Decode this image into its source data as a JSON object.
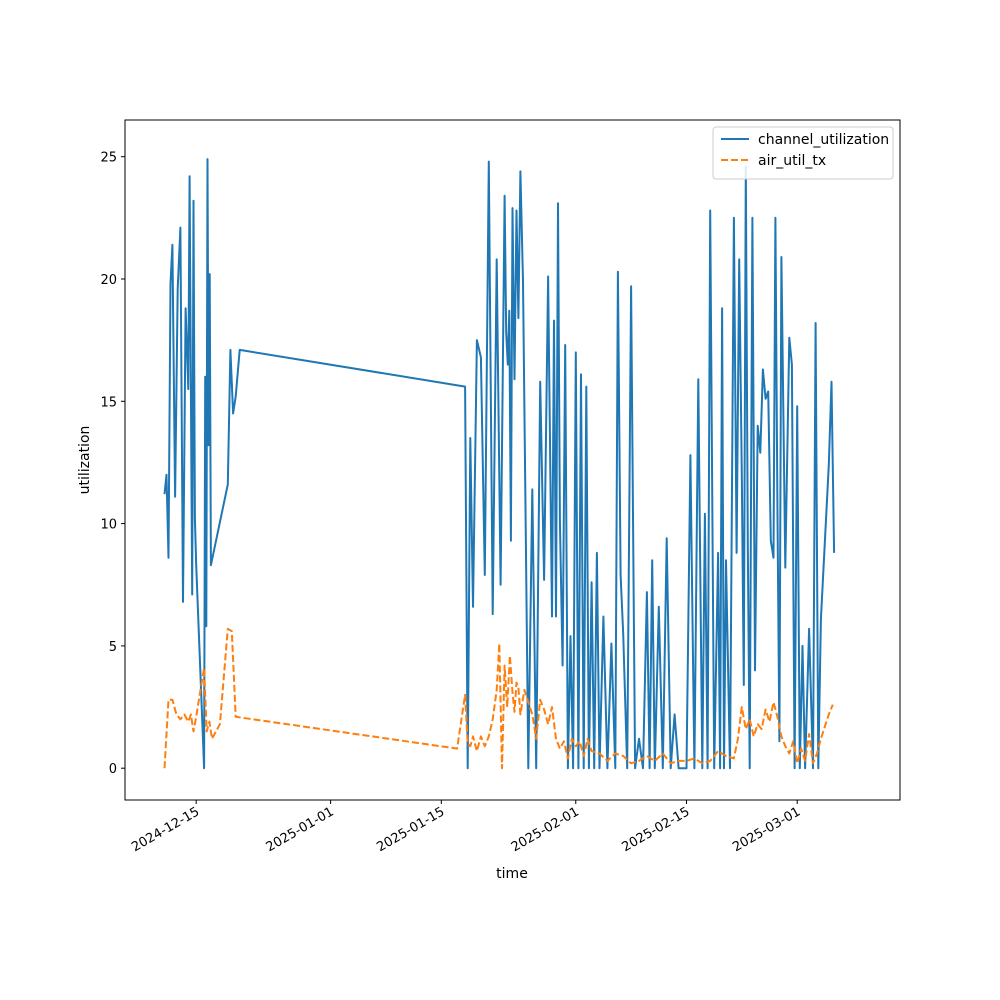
{
  "chart_data": {
    "type": "line",
    "title": "",
    "xlabel": "time",
    "ylabel": "utilization",
    "x_tick_labels": [
      "2024-12-15",
      "2025-01-01",
      "2025-01-15",
      "2025-02-01",
      "2025-02-15",
      "2025-03-01"
    ],
    "x_tick_dates": [
      "2024-12-15",
      "2025-01-01",
      "2025-01-15",
      "2025-02-01",
      "2025-02-15",
      "2025-03-01"
    ],
    "y_ticks": [
      0,
      5,
      10,
      15,
      20,
      25
    ],
    "xlim": [
      "2024-12-06",
      "2025-03-14"
    ],
    "ylim": [
      -1.3,
      26.5
    ],
    "grid": false,
    "legend_position": "top-right",
    "colors": {
      "channel_utilization": "#1f77b4",
      "air_util_tx": "#ff7f0e"
    },
    "series": [
      {
        "name": "channel_utilization",
        "style": "solid",
        "points": [
          [
            "2024-12-11",
            11.2
          ],
          [
            "2024-12-11",
            12.0
          ],
          [
            "2024-12-11",
            8.6
          ],
          [
            "2024-12-11",
            19.8
          ],
          [
            "2024-12-12",
            21.4
          ],
          [
            "2024-12-12",
            11.1
          ],
          [
            "2024-12-12",
            19.6
          ],
          [
            "2024-12-13",
            22.1
          ],
          [
            "2024-12-13",
            6.8
          ],
          [
            "2024-12-13",
            18.8
          ],
          [
            "2024-12-14",
            15.5
          ],
          [
            "2024-12-14",
            24.2
          ],
          [
            "2024-12-14",
            15.5
          ],
          [
            "2024-12-14",
            7.1
          ],
          [
            "2024-12-14",
            23.2
          ],
          [
            "2024-12-14",
            10.2
          ],
          [
            "2024-12-15",
            8.3
          ],
          [
            "2024-12-16",
            0.0
          ],
          [
            "2024-12-16",
            16.0
          ],
          [
            "2024-12-16",
            5.8
          ],
          [
            "2024-12-16",
            24.9
          ],
          [
            "2024-12-16",
            13.2
          ],
          [
            "2024-12-16",
            20.2
          ],
          [
            "2024-12-16",
            8.3
          ],
          [
            "2024-12-19",
            11.6
          ],
          [
            "2024-12-19",
            17.1
          ],
          [
            "2024-12-19",
            14.5
          ],
          [
            "2024-12-20",
            15.2
          ],
          [
            "2024-12-20",
            17.1
          ],
          [
            "2025-01-18",
            15.6
          ],
          [
            "2025-01-18",
            0.0
          ],
          [
            "2025-01-18",
            13.5
          ],
          [
            "2025-01-19",
            6.6
          ],
          [
            "2025-01-19",
            17.5
          ],
          [
            "2025-01-20",
            16.8
          ],
          [
            "2025-01-20",
            7.9
          ],
          [
            "2025-01-21",
            24.8
          ],
          [
            "2025-01-21",
            6.3
          ],
          [
            "2025-01-22",
            20.8
          ],
          [
            "2025-01-22",
            7.5
          ],
          [
            "2025-01-23",
            23.4
          ],
          [
            "2025-01-23",
            17.8
          ],
          [
            "2025-01-23",
            16.5
          ],
          [
            "2025-01-23",
            18.7
          ],
          [
            "2025-01-23",
            9.3
          ],
          [
            "2025-01-24",
            22.9
          ],
          [
            "2025-01-24",
            15.9
          ],
          [
            "2025-01-24",
            22.8
          ],
          [
            "2025-01-24",
            18.4
          ],
          [
            "2025-01-25",
            24.4
          ],
          [
            "2025-01-25",
            19.9
          ],
          [
            "2025-01-25",
            9.9
          ],
          [
            "2025-01-26",
            0.0
          ],
          [
            "2025-01-26",
            11.4
          ],
          [
            "2025-01-27",
            0.0
          ],
          [
            "2025-01-27",
            15.8
          ],
          [
            "2025-01-28",
            7.7
          ],
          [
            "2025-01-28",
            20.1
          ],
          [
            "2025-01-29",
            6.2
          ],
          [
            "2025-01-29",
            18.3
          ],
          [
            "2025-01-29",
            6.2
          ],
          [
            "2025-01-29",
            23.1
          ],
          [
            "2025-01-30",
            10.1
          ],
          [
            "2025-01-30",
            4.2
          ],
          [
            "2025-01-30",
            17.3
          ],
          [
            "2025-01-31",
            0.0
          ],
          [
            "2025-01-31",
            5.4
          ],
          [
            "2025-01-31",
            0.0
          ],
          [
            "2025-02-01",
            17.0
          ],
          [
            "2025-02-01",
            0.0
          ],
          [
            "2025-02-01",
            16.1
          ],
          [
            "2025-02-02",
            0.0
          ],
          [
            "2025-02-02",
            15.6
          ],
          [
            "2025-02-02",
            0.0
          ],
          [
            "2025-02-03",
            7.6
          ],
          [
            "2025-02-03",
            0.0
          ],
          [
            "2025-02-03",
            8.8
          ],
          [
            "2025-02-04",
            0.0
          ],
          [
            "2025-02-04",
            6.2
          ],
          [
            "2025-02-05",
            0.0
          ],
          [
            "2025-02-05",
            5.1
          ],
          [
            "2025-02-06",
            0.0
          ],
          [
            "2025-02-06",
            20.3
          ],
          [
            "2025-02-06",
            7.9
          ],
          [
            "2025-02-07",
            5.5
          ],
          [
            "2025-02-07",
            0.0
          ],
          [
            "2025-02-08",
            19.7
          ],
          [
            "2025-02-08",
            0.0
          ],
          [
            "2025-02-09",
            1.2
          ],
          [
            "2025-02-09",
            0.0
          ],
          [
            "2025-02-10",
            7.2
          ],
          [
            "2025-02-10",
            0.0
          ],
          [
            "2025-02-10",
            8.5
          ],
          [
            "2025-02-11",
            0.0
          ],
          [
            "2025-02-11",
            6.6
          ],
          [
            "2025-02-12",
            0.0
          ],
          [
            "2025-02-12",
            9.4
          ],
          [
            "2025-02-13",
            0.0
          ],
          [
            "2025-02-13",
            2.2
          ],
          [
            "2025-02-14",
            0.0
          ],
          [
            "2025-02-15",
            0.0
          ],
          [
            "2025-02-15",
            12.8
          ],
          [
            "2025-02-16",
            0.0
          ],
          [
            "2025-02-16",
            15.9
          ],
          [
            "2025-02-17",
            0.0
          ],
          [
            "2025-02-17",
            10.4
          ],
          [
            "2025-02-17",
            0.0
          ],
          [
            "2025-02-18",
            22.8
          ],
          [
            "2025-02-18",
            0.0
          ],
          [
            "2025-02-19",
            8.8
          ],
          [
            "2025-02-19",
            0.0
          ],
          [
            "2025-02-19",
            18.8
          ],
          [
            "2025-02-19",
            0.0
          ],
          [
            "2025-02-20",
            8.5
          ],
          [
            "2025-02-20",
            0.0
          ],
          [
            "2025-02-21",
            22.5
          ],
          [
            "2025-02-21",
            8.8
          ],
          [
            "2025-02-21",
            20.8
          ],
          [
            "2025-02-22",
            12.0
          ],
          [
            "2025-02-22",
            3.4
          ],
          [
            "2025-02-22",
            24.6
          ],
          [
            "2025-02-22",
            9.1
          ],
          [
            "2025-02-23",
            0.0
          ],
          [
            "2025-02-23",
            22.5
          ],
          [
            "2025-02-23",
            4.0
          ],
          [
            "2025-02-24",
            14.0
          ],
          [
            "2025-02-24",
            12.9
          ],
          [
            "2025-02-24",
            16.3
          ],
          [
            "2025-02-25",
            15.1
          ],
          [
            "2025-02-25",
            15.4
          ],
          [
            "2025-02-25",
            9.3
          ],
          [
            "2025-02-26",
            8.6
          ],
          [
            "2025-02-26",
            22.5
          ],
          [
            "2025-02-26",
            10.8
          ],
          [
            "2025-02-26",
            1.1
          ],
          [
            "2025-02-27",
            20.9
          ],
          [
            "2025-02-27",
            8.2
          ],
          [
            "2025-02-28",
            17.6
          ],
          [
            "2025-02-28",
            16.5
          ],
          [
            "2025-02-28",
            0.0
          ],
          [
            "2025-03-01",
            14.8
          ],
          [
            "2025-03-01",
            0.0
          ],
          [
            "2025-03-01",
            5.0
          ],
          [
            "2025-03-02",
            0.0
          ],
          [
            "2025-03-02",
            5.7
          ],
          [
            "2025-03-03",
            0.0
          ],
          [
            "2025-03-03",
            18.2
          ],
          [
            "2025-03-03",
            0.0
          ],
          [
            "2025-03-04",
            6.1
          ],
          [
            "2025-03-05",
            12.4
          ],
          [
            "2025-03-05",
            15.8
          ],
          [
            "2025-03-05",
            8.8
          ]
        ]
      },
      {
        "name": "air_util_tx",
        "style": "dashed",
        "points": [
          [
            "2024-12-11",
            0.0
          ],
          [
            "2024-12-11",
            2.8
          ],
          [
            "2024-12-12",
            2.8
          ],
          [
            "2024-12-12",
            2.2
          ],
          [
            "2024-12-13",
            2.0
          ],
          [
            "2024-12-13",
            2.2
          ],
          [
            "2024-12-14",
            1.9
          ],
          [
            "2024-12-14",
            2.2
          ],
          [
            "2024-12-14",
            1.5
          ],
          [
            "2024-12-15",
            2.1
          ],
          [
            "2024-12-15",
            3.1
          ],
          [
            "2024-12-16",
            4.1
          ],
          [
            "2024-12-16",
            1.5
          ],
          [
            "2024-12-16",
            1.9
          ],
          [
            "2024-12-17",
            1.2
          ],
          [
            "2024-12-18",
            1.8
          ],
          [
            "2024-12-19",
            5.7
          ],
          [
            "2024-12-19",
            5.6
          ],
          [
            "2024-12-20",
            2.1
          ],
          [
            "2025-01-17",
            0.8
          ],
          [
            "2025-01-18",
            3.0
          ],
          [
            "2025-01-18",
            1.0
          ],
          [
            "2025-01-18",
            0.9
          ],
          [
            "2025-01-19",
            1.3
          ],
          [
            "2025-01-19",
            0.7
          ],
          [
            "2025-01-20",
            1.3
          ],
          [
            "2025-01-20",
            0.9
          ],
          [
            "2025-01-21",
            1.3
          ],
          [
            "2025-01-21",
            2.0
          ],
          [
            "2025-01-22",
            3.2
          ],
          [
            "2025-01-22",
            5.1
          ],
          [
            "2025-01-22",
            0.0
          ],
          [
            "2025-01-23",
            4.2
          ],
          [
            "2025-01-23",
            2.5
          ],
          [
            "2025-01-23",
            4.6
          ],
          [
            "2025-01-24",
            3.1
          ],
          [
            "2025-01-24",
            2.3
          ],
          [
            "2025-01-24",
            3.5
          ],
          [
            "2025-01-24",
            3.3
          ],
          [
            "2025-01-25",
            2.2
          ],
          [
            "2025-01-25",
            3.2
          ],
          [
            "2025-01-26",
            2.7
          ],
          [
            "2025-01-26",
            2.2
          ],
          [
            "2025-01-27",
            1.2
          ],
          [
            "2025-01-27",
            2.8
          ],
          [
            "2025-01-28",
            2.4
          ],
          [
            "2025-01-28",
            1.8
          ],
          [
            "2025-01-29",
            2.5
          ],
          [
            "2025-01-29",
            1.2
          ],
          [
            "2025-01-30",
            0.8
          ],
          [
            "2025-01-30",
            1.1
          ],
          [
            "2025-01-31",
            0.4
          ],
          [
            "2025-01-31",
            1.2
          ],
          [
            "2025-02-01",
            0.9
          ],
          [
            "2025-02-01",
            1.1
          ],
          [
            "2025-02-02",
            0.5
          ],
          [
            "2025-02-02",
            1.2
          ],
          [
            "2025-02-03",
            0.7
          ],
          [
            "2025-02-04",
            0.6
          ],
          [
            "2025-02-05",
            0.3
          ],
          [
            "2025-02-06",
            0.6
          ],
          [
            "2025-02-07",
            0.5
          ],
          [
            "2025-02-08",
            0.2
          ],
          [
            "2025-02-09",
            0.3
          ],
          [
            "2025-02-10",
            0.5
          ],
          [
            "2025-02-11",
            0.3
          ],
          [
            "2025-02-12",
            0.6
          ],
          [
            "2025-02-13",
            0.2
          ],
          [
            "2025-02-14",
            0.3
          ],
          [
            "2025-02-15",
            0.3
          ],
          [
            "2025-02-16",
            0.4
          ],
          [
            "2025-02-17",
            0.2
          ],
          [
            "2025-02-18",
            0.3
          ],
          [
            "2025-02-19",
            0.7
          ],
          [
            "2025-02-20",
            0.5
          ],
          [
            "2025-02-21",
            0.4
          ],
          [
            "2025-02-21",
            1.2
          ],
          [
            "2025-02-22",
            2.5
          ],
          [
            "2025-02-22",
            1.6
          ],
          [
            "2025-02-23",
            2.0
          ],
          [
            "2025-02-23",
            1.3
          ],
          [
            "2025-02-24",
            1.8
          ],
          [
            "2025-02-24",
            1.6
          ],
          [
            "2025-02-25",
            2.4
          ],
          [
            "2025-02-25",
            1.9
          ],
          [
            "2025-02-26",
            2.7
          ],
          [
            "2025-02-26",
            2.1
          ],
          [
            "2025-02-27",
            1.3
          ],
          [
            "2025-02-27",
            0.9
          ],
          [
            "2025-02-28",
            0.6
          ],
          [
            "2025-02-28",
            1.1
          ],
          [
            "2025-03-01",
            0.2
          ],
          [
            "2025-03-01",
            0.8
          ],
          [
            "2025-03-02",
            0.3
          ],
          [
            "2025-03-02",
            1.4
          ],
          [
            "2025-03-03",
            0.2
          ],
          [
            "2025-03-03",
            0.6
          ],
          [
            "2025-03-04",
            1.2
          ],
          [
            "2025-03-05",
            2.2
          ],
          [
            "2025-03-05",
            2.6
          ]
        ]
      }
    ]
  }
}
